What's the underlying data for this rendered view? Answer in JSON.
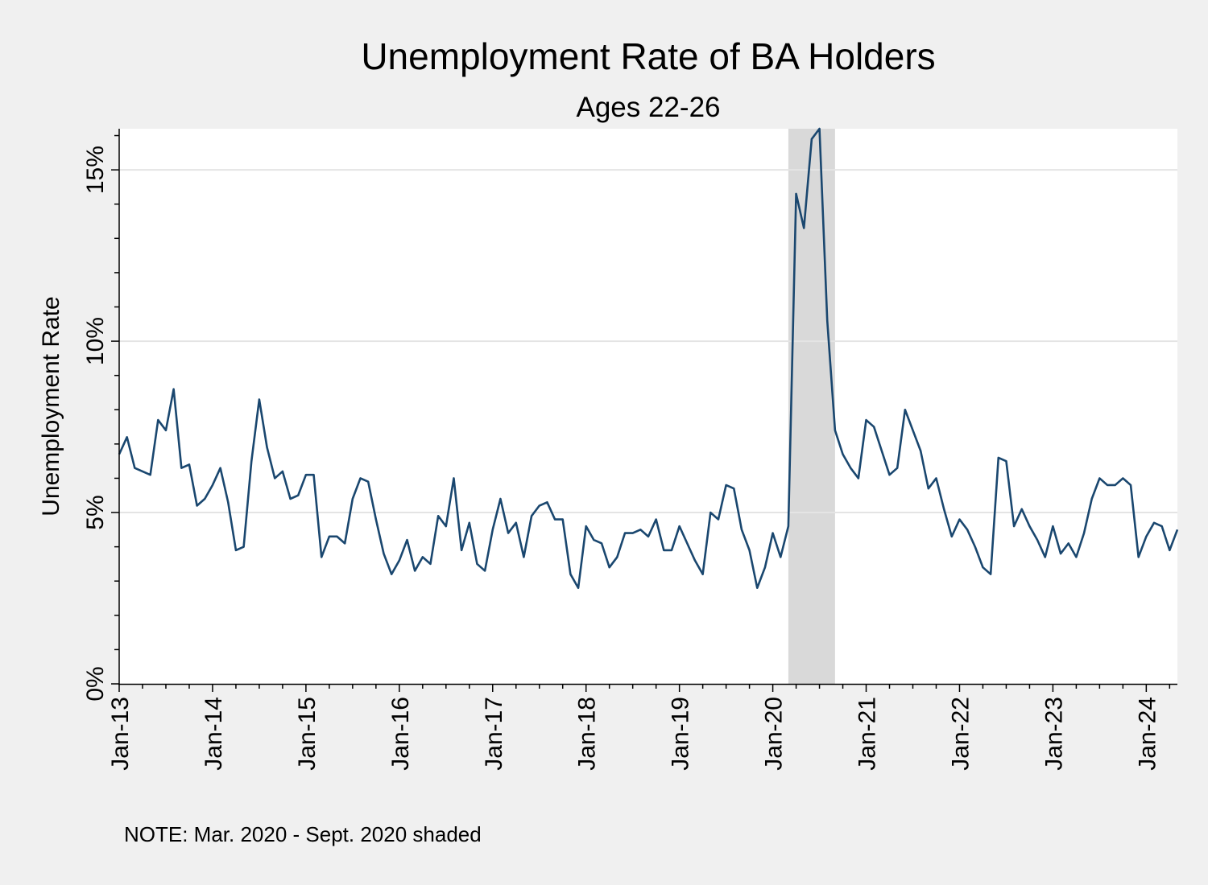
{
  "chart_data": {
    "type": "line",
    "title": "Unemployment Rate of BA Holders",
    "subtitle": "Ages 22-26",
    "ylabel": "Unemployment Rate",
    "xlabel": "",
    "ylim": [
      0,
      16.2
    ],
    "y_ticks": [
      0,
      5,
      10,
      15
    ],
    "y_tick_labels": [
      "0%",
      "5%",
      "10%",
      "15%"
    ],
    "y_minor_tick_step": 1,
    "x_start": "2013-01",
    "x_end": "2024-05",
    "x_ticks": [
      "Jan-13",
      "Jan-14",
      "Jan-15",
      "Jan-16",
      "Jan-17",
      "Jan-18",
      "Jan-19",
      "Jan-20",
      "Jan-21",
      "Jan-22",
      "Jan-23",
      "Jan-24"
    ],
    "grid": true,
    "line_color": "#1a476f",
    "shade": {
      "start": "2020-03",
      "end": "2020-09",
      "color": "#d9d9d9"
    },
    "note": "NOTE: Mar. 2020 - Sept. 2020 shaded",
    "series": [
      {
        "values": [
          6.7,
          7.2,
          6.3,
          6.2,
          6.1,
          7.7,
          7.4,
          8.6,
          6.3,
          6.4,
          5.2,
          5.4,
          5.8,
          6.3,
          5.3,
          3.9,
          4.0,
          6.5,
          8.3,
          6.9,
          6.0,
          6.2,
          5.4,
          5.5,
          6.1,
          6.1,
          3.7,
          4.3,
          4.3,
          4.1,
          5.4,
          6.0,
          5.9,
          4.8,
          3.8,
          3.2,
          3.6,
          4.2,
          3.3,
          3.7,
          3.5,
          4.9,
          4.6,
          6.0,
          3.9,
          4.7,
          3.5,
          3.3,
          4.5,
          5.4,
          4.4,
          4.7,
          3.7,
          4.9,
          5.2,
          5.3,
          4.8,
          4.8,
          3.2,
          2.8,
          4.6,
          4.2,
          4.1,
          3.4,
          3.7,
          4.4,
          4.4,
          4.5,
          4.3,
          4.8,
          3.9,
          3.9,
          4.6,
          4.1,
          3.6,
          3.2,
          5.0,
          4.8,
          5.8,
          5.7,
          4.5,
          3.9,
          2.8,
          3.4,
          4.4,
          3.7,
          4.6,
          14.3,
          13.3,
          15.9,
          16.2,
          10.6,
          7.4,
          6.7,
          6.3,
          6.0,
          7.7,
          7.5,
          6.8,
          6.1,
          6.3,
          8.0,
          7.4,
          6.8,
          5.7,
          6.0,
          5.1,
          4.3,
          4.8,
          4.5,
          4.0,
          3.4,
          3.2,
          6.6,
          6.5,
          4.6,
          5.1,
          4.6,
          4.2,
          3.7,
          4.6,
          3.8,
          4.1,
          3.7,
          4.4,
          5.4,
          6.0,
          5.8,
          5.8,
          6.0,
          5.8,
          3.7,
          4.3,
          4.7,
          4.6,
          3.9,
          4.5
        ]
      }
    ]
  }
}
